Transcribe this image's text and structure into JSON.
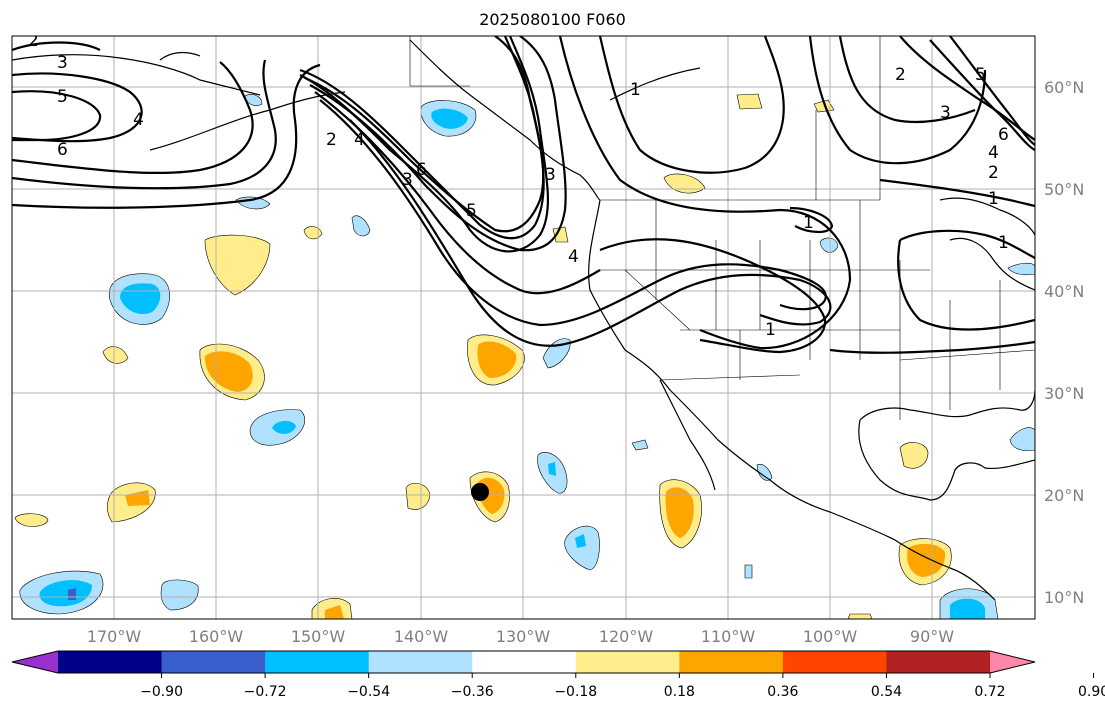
{
  "title": "2025080100 F060",
  "longitude_labels": [
    "170°W",
    "160°W",
    "150°W",
    "140°W",
    "130°W",
    "120°W",
    "110°W",
    "100°W",
    "90°W"
  ],
  "latitude_labels": [
    "60°N",
    "50°N",
    "40°N",
    "30°N",
    "20°N",
    "10°N"
  ],
  "colorbar": {
    "tick_labels": [
      "−0.90",
      "−0.72",
      "−0.54",
      "−0.36",
      "−0.18",
      "0.18",
      "0.36",
      "0.54",
      "0.72",
      "0.90"
    ],
    "colors": [
      "#9b30d0",
      "#00008b",
      "#3a5fcd",
      "#00bfff",
      "#b0e2ff",
      "#ffffff",
      "#ffec8b",
      "#ffa500",
      "#ff4500",
      "#b22222",
      "#ff88aa"
    ]
  },
  "contour_labels": [
    "2",
    "3",
    "5",
    "6",
    "4",
    "2",
    "4",
    "3",
    "6",
    "5",
    "4",
    "3",
    "1",
    "1",
    "1",
    "1",
    "2",
    "3",
    "5",
    "6",
    "4",
    "2",
    "1"
  ],
  "marker": "filled-black-circle"
}
